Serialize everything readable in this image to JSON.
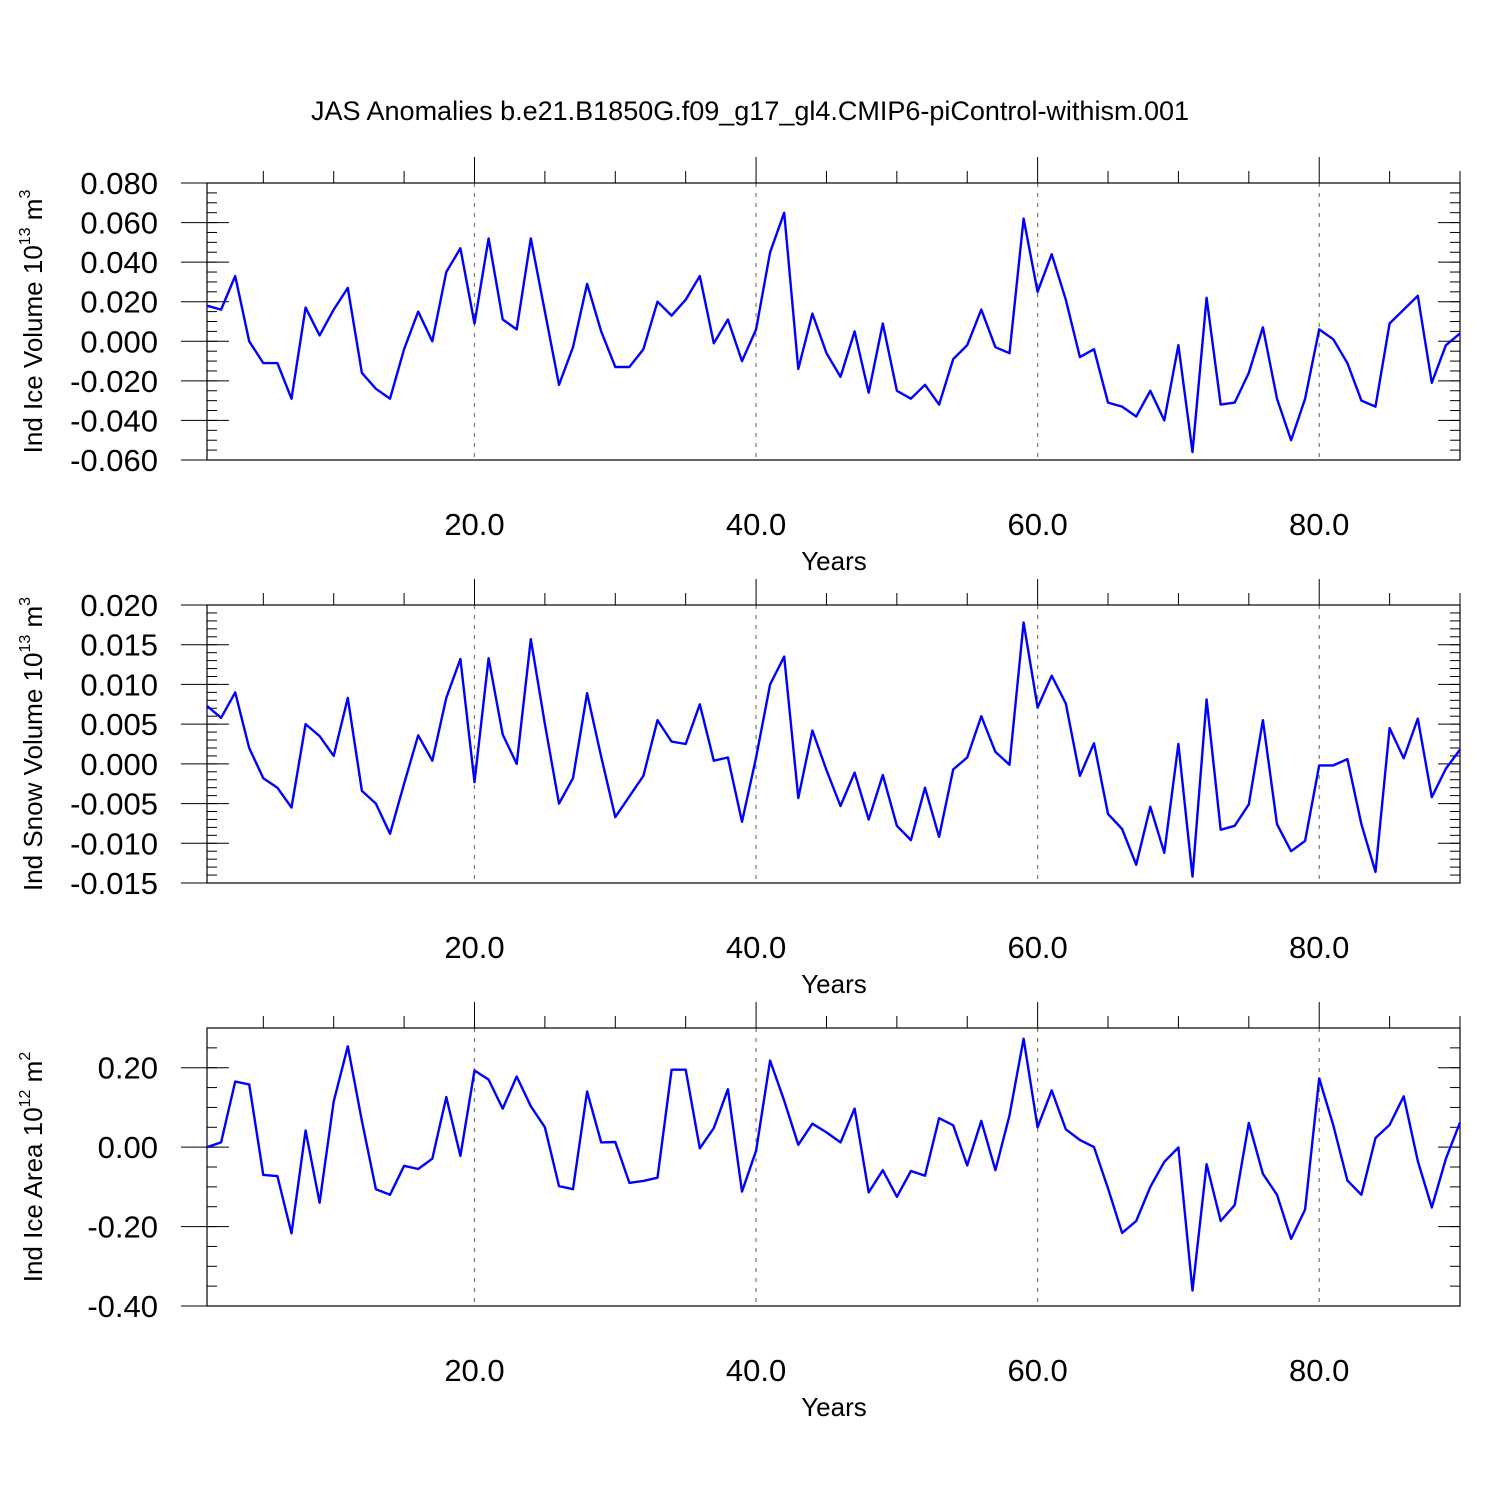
{
  "figure": {
    "title": "JAS Anomalies b.e21.B1850G.f09_g17_gl4.CMIP6-piControl-withism.001"
  },
  "colors": {
    "series": "#0000ff",
    "frame": "#000000",
    "grid": "#777777"
  },
  "chart_data": [
    {
      "type": "line",
      "ylabel": "Ind Ice Volume 10",
      "ylabel_exp": "13",
      "ylabel_unit": "m",
      "ylabel_unit_exp": "3",
      "xlabel": "Years",
      "xlim": [
        1,
        90
      ],
      "ylim": [
        -0.06,
        0.08
      ],
      "xticks": [
        20,
        40,
        60,
        80
      ],
      "xtick_labels": [
        "20.0",
        "40.0",
        "60.0",
        "80.0"
      ],
      "yticks": [
        -0.06,
        -0.04,
        -0.02,
        0.0,
        0.02,
        0.04,
        0.06,
        0.08
      ],
      "ytick_labels": [
        "-0.060",
        "-0.040",
        "-0.020",
        "0.000",
        "0.020",
        "0.040",
        "0.060",
        "0.080"
      ],
      "ymin_step": 0.005,
      "grid": "vertical dashed at x ticks",
      "x": [
        1,
        2,
        3,
        4,
        5,
        6,
        7,
        8,
        9,
        10,
        11,
        12,
        13,
        14,
        15,
        16,
        17,
        18,
        19,
        20,
        21,
        22,
        23,
        24,
        25,
        26,
        27,
        28,
        29,
        30,
        31,
        32,
        33,
        34,
        35,
        36,
        37,
        38,
        39,
        40,
        41,
        42,
        43,
        44,
        45,
        46,
        47,
        48,
        49,
        50,
        51,
        52,
        53,
        54,
        55,
        56,
        57,
        58,
        59,
        60,
        61,
        62,
        63,
        64,
        65,
        66,
        67,
        68,
        69,
        70,
        71,
        72,
        73,
        74,
        75,
        76,
        77,
        78,
        79,
        80,
        81,
        82,
        83,
        84,
        85,
        86,
        87,
        88,
        89,
        90
      ],
      "y": [
        0.018,
        0.016,
        0.033,
        0.0,
        -0.011,
        -0.011,
        -0.029,
        0.017,
        0.003,
        0.016,
        0.027,
        -0.016,
        -0.024,
        -0.029,
        -0.004,
        0.015,
        0.0,
        0.035,
        0.047,
        0.009,
        0.052,
        0.011,
        0.006,
        0.052,
        0.015,
        -0.022,
        -0.003,
        0.029,
        0.005,
        -0.013,
        -0.013,
        -0.004,
        0.02,
        0.013,
        0.021,
        0.033,
        -0.001,
        0.011,
        -0.01,
        0.006,
        0.045,
        0.065,
        -0.014,
        0.014,
        -0.006,
        -0.018,
        0.005,
        -0.026,
        0.009,
        -0.025,
        -0.029,
        -0.022,
        -0.032,
        -0.009,
        -0.002,
        0.016,
        -0.003,
        -0.006,
        0.062,
        0.025,
        0.044,
        0.021,
        -0.008,
        -0.004,
        -0.031,
        -0.033,
        -0.038,
        -0.025,
        -0.04,
        -0.002,
        -0.056,
        0.022,
        -0.032,
        -0.031,
        -0.016,
        0.007,
        -0.029,
        -0.05,
        -0.029,
        0.006,
        0.001,
        -0.011,
        -0.03,
        -0.033,
        0.009,
        0.016,
        0.023,
        -0.021,
        -0.002,
        0.004
      ]
    },
    {
      "type": "line",
      "ylabel": "Ind Snow Volume 10",
      "ylabel_exp": "13",
      "ylabel_unit": "m",
      "ylabel_unit_exp": "3",
      "xlabel": "Years",
      "xlim": [
        1,
        90
      ],
      "ylim": [
        -0.015,
        0.02
      ],
      "xticks": [
        20,
        40,
        60,
        80
      ],
      "xtick_labels": [
        "20.0",
        "40.0",
        "60.0",
        "80.0"
      ],
      "yticks": [
        -0.015,
        -0.01,
        -0.005,
        0.0,
        0.005,
        0.01,
        0.015,
        0.02
      ],
      "ytick_labels": [
        "-0.015",
        "-0.010",
        "-0.005",
        "0.000",
        "0.005",
        "0.010",
        "0.015",
        "0.020"
      ],
      "ymin_step": 0.001,
      "grid": "vertical dashed at x ticks",
      "x": [
        1,
        2,
        3,
        4,
        5,
        6,
        7,
        8,
        9,
        10,
        11,
        12,
        13,
        14,
        15,
        16,
        17,
        18,
        19,
        20,
        21,
        22,
        23,
        24,
        25,
        26,
        27,
        28,
        29,
        30,
        31,
        32,
        33,
        34,
        35,
        36,
        37,
        38,
        39,
        40,
        41,
        42,
        43,
        44,
        45,
        46,
        47,
        48,
        49,
        50,
        51,
        52,
        53,
        54,
        55,
        56,
        57,
        58,
        59,
        60,
        61,
        62,
        63,
        64,
        65,
        66,
        67,
        68,
        69,
        70,
        71,
        72,
        73,
        74,
        75,
        76,
        77,
        78,
        79,
        80,
        81,
        82,
        83,
        84,
        85,
        86,
        87,
        88,
        89,
        90
      ],
      "y": [
        0.0073,
        0.0058,
        0.009,
        0.002,
        -0.0018,
        -0.003,
        -0.0055,
        0.005,
        0.0035,
        0.001,
        0.0083,
        -0.0034,
        -0.005,
        -0.0088,
        -0.0025,
        0.0036,
        0.0004,
        0.0083,
        0.0132,
        -0.0023,
        0.0133,
        0.0037,
        0.0,
        0.0157,
        0.005,
        -0.005,
        -0.0018,
        0.0089,
        0.0009,
        -0.0067,
        -0.0041,
        -0.0015,
        0.0055,
        0.0028,
        0.0025,
        0.0075,
        0.0004,
        0.0008,
        -0.0073,
        0.0008,
        0.01,
        0.0135,
        -0.0043,
        0.0042,
        -0.0008,
        -0.0053,
        -0.0011,
        -0.007,
        -0.0014,
        -0.0078,
        -0.0096,
        -0.003,
        -0.0092,
        -0.0007,
        0.0008,
        0.006,
        0.0015,
        -0.0001,
        0.0178,
        0.0071,
        0.0111,
        0.0076,
        -0.0015,
        0.0026,
        -0.0063,
        -0.0082,
        -0.0127,
        -0.0054,
        -0.0112,
        0.0025,
        -0.0142,
        0.0081,
        -0.0083,
        -0.0078,
        -0.0051,
        0.0055,
        -0.0076,
        -0.011,
        -0.0097,
        -0.0002,
        -0.0002,
        0.0006,
        -0.0076,
        -0.0136,
        0.0045,
        0.0007,
        0.0057,
        -0.0042,
        -0.0006,
        0.0018
      ]
    },
    {
      "type": "line",
      "ylabel": "Ind Ice Area 10",
      "ylabel_exp": "12",
      "ylabel_unit": "m",
      "ylabel_unit_exp": "2",
      "xlabel": "Years",
      "xlim": [
        1,
        90
      ],
      "ylim": [
        -0.4,
        0.3
      ],
      "xticks": [
        20,
        40,
        60,
        80
      ],
      "xtick_labels": [
        "20.0",
        "40.0",
        "60.0",
        "80.0"
      ],
      "yticks": [
        -0.4,
        -0.2,
        0.0,
        0.2
      ],
      "ytick_labels": [
        "-0.40",
        "-0.20",
        "0.00",
        "0.20"
      ],
      "ymin_step": 0.05,
      "grid": "vertical dashed at x ticks",
      "x": [
        1,
        2,
        3,
        4,
        5,
        6,
        7,
        8,
        9,
        10,
        11,
        12,
        13,
        14,
        15,
        16,
        17,
        18,
        19,
        20,
        21,
        22,
        23,
        24,
        25,
        26,
        27,
        28,
        29,
        30,
        31,
        32,
        33,
        34,
        35,
        36,
        37,
        38,
        39,
        40,
        41,
        42,
        43,
        44,
        45,
        46,
        47,
        48,
        49,
        50,
        51,
        52,
        53,
        54,
        55,
        56,
        57,
        58,
        59,
        60,
        61,
        62,
        63,
        64,
        65,
        66,
        67,
        68,
        69,
        70,
        71,
        72,
        73,
        74,
        75,
        76,
        77,
        78,
        79,
        80,
        81,
        82,
        83,
        84,
        85,
        86,
        87,
        88,
        89,
        90
      ],
      "y": [
        0.0,
        0.012,
        0.165,
        0.158,
        -0.07,
        -0.073,
        -0.217,
        0.042,
        -0.14,
        0.115,
        0.254,
        0.066,
        -0.106,
        -0.12,
        -0.047,
        -0.055,
        -0.029,
        0.126,
        -0.022,
        0.193,
        0.17,
        0.097,
        0.178,
        0.103,
        0.05,
        -0.098,
        -0.106,
        0.14,
        0.012,
        0.013,
        -0.09,
        -0.085,
        -0.077,
        0.195,
        0.195,
        -0.003,
        0.048,
        0.146,
        -0.112,
        -0.009,
        0.218,
        0.117,
        0.006,
        0.059,
        0.037,
        0.012,
        0.097,
        -0.114,
        -0.058,
        -0.125,
        -0.06,
        -0.072,
        0.073,
        0.055,
        -0.046,
        0.066,
        -0.058,
        0.08,
        0.273,
        0.05,
        0.143,
        0.045,
        0.018,
        0.0,
        -0.104,
        -0.216,
        -0.186,
        -0.1,
        -0.037,
        -0.001,
        -0.361,
        -0.043,
        -0.186,
        -0.146,
        0.061,
        -0.067,
        -0.12,
        -0.231,
        -0.157,
        0.173,
        0.055,
        -0.084,
        -0.12,
        0.023,
        0.056,
        0.128,
        -0.035,
        -0.152,
        -0.029,
        0.062
      ]
    }
  ]
}
